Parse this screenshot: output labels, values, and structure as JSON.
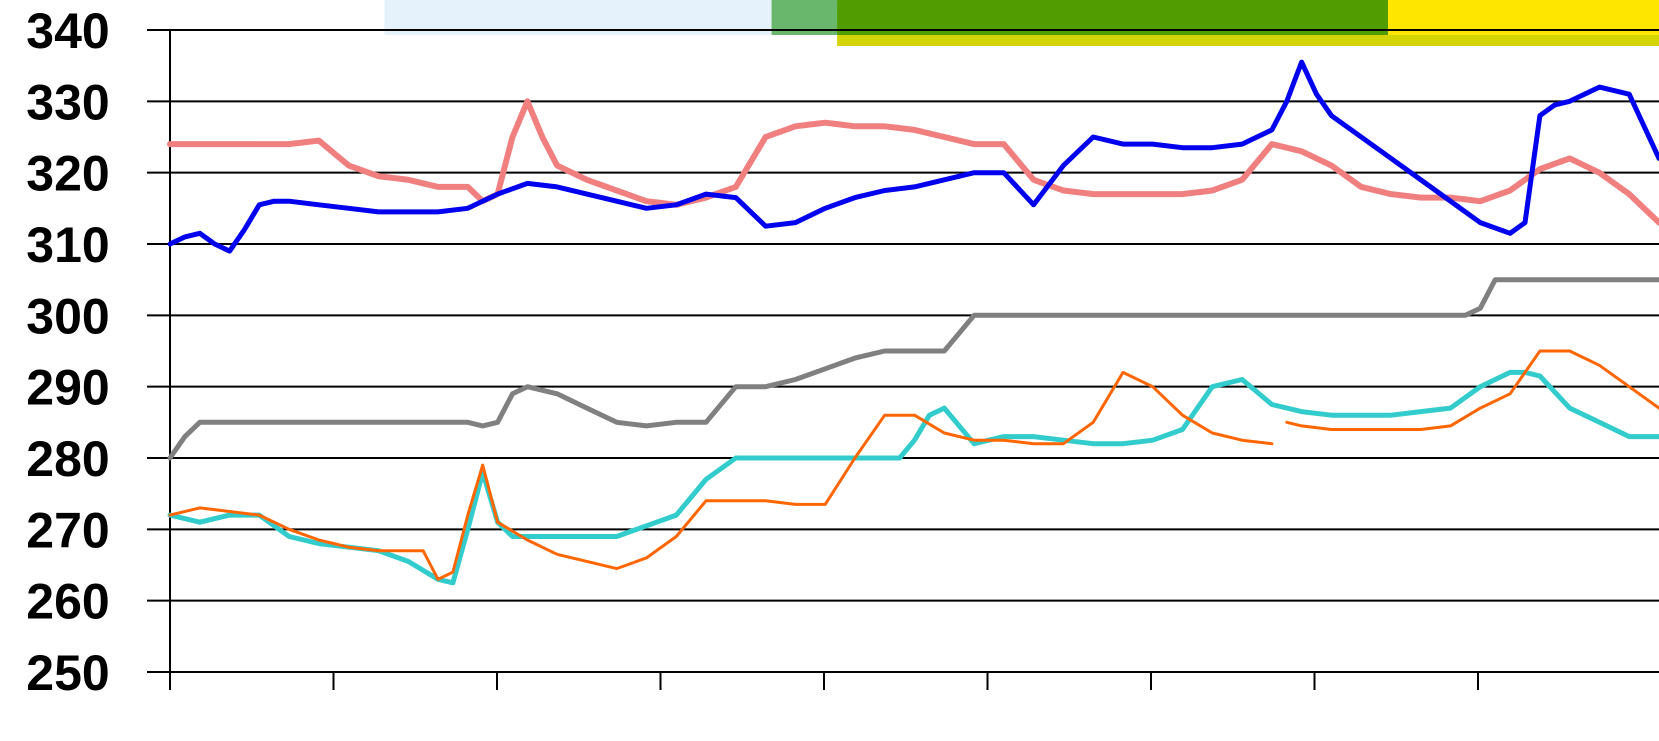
{
  "chart_data": {
    "type": "line",
    "title": "",
    "xlabel": "",
    "ylabel": "",
    "ylim": [
      250,
      340
    ],
    "xlim": [
      0,
      100
    ],
    "y_ticks": [
      "250",
      "260",
      "270",
      "280",
      "290",
      "300",
      "310",
      "320",
      "330",
      "340"
    ],
    "x_tick_count": 9,
    "grid": "horizontal",
    "legend": "none",
    "top_bars": [
      {
        "name": "",
        "color": "#e6f2fb",
        "x0": 14.4,
        "x1": 40.4,
        "band": "upper"
      },
      {
        "name": "",
        "color": "#69b76c",
        "x0": 40.4,
        "x1": 44.8,
        "band": "upper"
      },
      {
        "name": "",
        "color": "#d4d400",
        "x0": 44.8,
        "x1": 100,
        "band": "lower"
      },
      {
        "name": "",
        "color": "#519c00",
        "x0": 44.8,
        "x1": 81.8,
        "band": "upper"
      },
      {
        "name": "",
        "color": "#ffe600",
        "x0": 81.8,
        "x1": 100,
        "band": "upper"
      }
    ],
    "series": [
      {
        "color": "#f08080",
        "width": 6,
        "dashed": true,
        "x": [
          0,
          2,
          4,
          6,
          8,
          10,
          12,
          14,
          16,
          18,
          19,
          20,
          21,
          22,
          23,
          24,
          25,
          26,
          28,
          30,
          32,
          34,
          36,
          38,
          40,
          42,
          44,
          46,
          48,
          50,
          52,
          54,
          56,
          58,
          60,
          62,
          64,
          66,
          68,
          70,
          72,
          74,
          76,
          78,
          80,
          82,
          84,
          86,
          88,
          90,
          92,
          94,
          96,
          98,
          100
        ],
        "y": [
          324,
          324,
          324,
          324,
          324,
          324.5,
          321,
          319.5,
          319,
          318,
          318,
          318,
          316,
          317,
          325,
          330,
          325,
          321,
          319,
          317.5,
          316,
          315.5,
          316.5,
          318,
          325,
          326.5,
          327,
          326.5,
          326.5,
          326,
          325,
          324,
          324,
          319,
          317.5,
          317,
          317,
          317,
          317,
          317.5,
          319,
          324,
          323,
          321,
          318,
          317,
          316.5,
          316.5,
          316,
          317.5,
          320.5,
          322,
          320,
          317,
          313
        ]
      },
      {
        "color": "#0000ee",
        "width": 5,
        "dashed": false,
        "x": [
          0,
          1,
          2,
          3,
          4,
          5,
          6,
          7,
          8,
          10,
          12,
          14,
          16,
          18,
          20,
          22,
          24,
          26,
          28,
          30,
          32,
          34,
          36,
          38,
          40,
          42,
          44,
          46,
          48,
          50,
          52,
          54,
          56,
          58,
          60,
          62,
          64,
          66,
          68,
          70,
          72,
          74,
          75,
          76,
          77,
          78,
          80,
          82,
          84,
          86,
          88,
          90,
          91,
          92,
          93,
          94,
          96,
          98,
          100
        ],
        "y": [
          310,
          311,
          311.5,
          310,
          309,
          312,
          315.5,
          316,
          316,
          315.5,
          315,
          314.5,
          314.5,
          314.5,
          315,
          317,
          318.5,
          318,
          317,
          316,
          315,
          315.5,
          317,
          316.5,
          312.5,
          313,
          315,
          316.5,
          317.5,
          318,
          319,
          320,
          320,
          315.5,
          321,
          325,
          324,
          324,
          323.5,
          323.5,
          324,
          326,
          330,
          335.5,
          331,
          328,
          325,
          322,
          319,
          316,
          313,
          311.5,
          313,
          328,
          329.5,
          330,
          332,
          331,
          322
        ]
      },
      {
        "color": "#808080",
        "width": 5,
        "dashed": false,
        "x": [
          0,
          1,
          2,
          3,
          4,
          6,
          10,
          15,
          20,
          21,
          22,
          23,
          24,
          26,
          28,
          30,
          32,
          34,
          36,
          38,
          40,
          42,
          44,
          46,
          48,
          50,
          52,
          54,
          56,
          58,
          60,
          65,
          70,
          75,
          80,
          83,
          86,
          87,
          88,
          89,
          90,
          95,
          100
        ],
        "y": [
          280,
          283,
          285,
          285,
          285,
          285,
          285,
          285,
          285,
          284.5,
          285,
          289,
          290,
          289,
          287,
          285,
          284.5,
          285,
          285,
          290,
          290,
          291,
          292.5,
          294,
          295,
          295,
          295,
          300,
          300,
          300,
          300,
          300,
          300,
          300,
          300,
          300,
          300,
          300,
          301,
          305,
          305,
          305,
          305
        ]
      },
      {
        "color": "#33cccc",
        "width": 5,
        "dashed": false,
        "x": [
          0,
          2,
          4,
          6,
          8,
          10,
          12,
          14,
          16,
          18,
          19,
          20,
          21,
          22,
          23,
          24,
          26,
          28,
          30,
          32,
          34,
          36,
          38,
          40,
          42,
          44,
          46,
          47,
          48,
          49,
          50,
          51,
          52,
          54,
          56,
          58,
          60,
          62,
          64,
          66,
          68,
          70,
          72,
          74,
          76,
          78,
          80,
          82,
          84,
          86,
          88,
          90,
          91,
          92,
          94,
          96,
          98,
          100
        ],
        "y": [
          272,
          271,
          272,
          272,
          269,
          268,
          267.5,
          267,
          265.5,
          263,
          262.5,
          270,
          278,
          271,
          269,
          269,
          269,
          269,
          269,
          270.5,
          272,
          277,
          280,
          280,
          280,
          280,
          280,
          280,
          280,
          280,
          282.5,
          286,
          287,
          282,
          283,
          283,
          282.5,
          282,
          282,
          282.5,
          284,
          290,
          291,
          287.5,
          286.5,
          286,
          286,
          286,
          286.5,
          287,
          290,
          292,
          292,
          291.5,
          287,
          285,
          283,
          283
        ]
      },
      {
        "color": "#ff6600",
        "width": 3,
        "dashed": false,
        "x": [
          0,
          2,
          4,
          6,
          8,
          10,
          12,
          14,
          16,
          17,
          18,
          19,
          20,
          21,
          22,
          24,
          26,
          28,
          30,
          32,
          34,
          36,
          38,
          40,
          42,
          44,
          46,
          48,
          50,
          52,
          54,
          56,
          58,
          60,
          62,
          64,
          66,
          68,
          70,
          72,
          74
        ],
        "y": [
          272,
          273,
          272.5,
          272,
          270,
          268.5,
          267.5,
          267,
          267,
          267,
          263,
          264,
          272,
          279,
          271,
          268.5,
          266.5,
          265.5,
          264.5,
          266,
          269,
          274,
          274,
          274,
          273.5,
          273.5,
          280,
          286,
          286,
          283.5,
          282.5,
          282.5,
          282,
          282,
          285,
          292,
          290,
          286,
          283.5,
          282.5,
          282
        ]
      },
      {
        "color": "#ff6600",
        "width": 3,
        "dashed": false,
        "x": [
          75,
          76,
          78,
          80,
          82,
          84,
          86,
          88,
          90,
          92,
          94,
          96,
          98,
          100
        ],
        "y": [
          285,
          284.5,
          284,
          284,
          284,
          284,
          284.5,
          287,
          289,
          295,
          295,
          293,
          290,
          287
        ]
      }
    ]
  }
}
